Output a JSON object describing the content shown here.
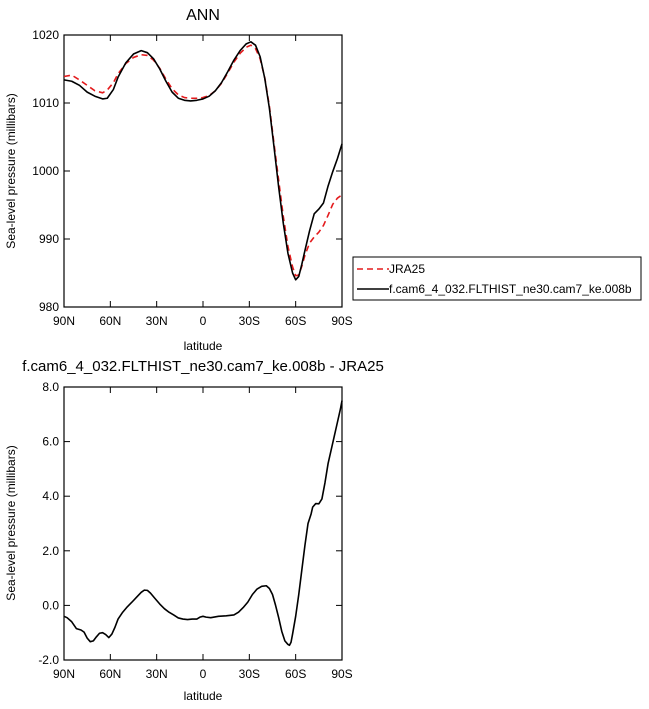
{
  "chart_data": [
    {
      "type": "line",
      "title": "ANN",
      "xlabel": "latitude",
      "ylabel": "Sea-level pressure (millibars)",
      "xlim": [
        90,
        -90
      ],
      "ylim": [
        980,
        1020
      ],
      "x_ticks": [
        {
          "value": 90,
          "label": "90N"
        },
        {
          "value": 60,
          "label": "60N"
        },
        {
          "value": 30,
          "label": "30N"
        },
        {
          "value": 0,
          "label": "0"
        },
        {
          "value": -30,
          "label": "30S"
        },
        {
          "value": -60,
          "label": "60S"
        },
        {
          "value": -90,
          "label": "90S"
        }
      ],
      "y_ticks": [
        {
          "value": 1020,
          "label": "1020"
        },
        {
          "value": 1010,
          "label": "1010"
        },
        {
          "value": 1000,
          "label": "1000"
        },
        {
          "value": 990,
          "label": "990"
        },
        {
          "value": 980,
          "label": "980"
        }
      ],
      "legend_position": "right",
      "series": [
        {
          "name": "JRA25",
          "color": "#e31a1c",
          "dash": "dashed",
          "points": [
            [
              90,
              1013.9
            ],
            [
              85,
              1014.1
            ],
            [
              80,
              1013.4
            ],
            [
              75,
              1012.6
            ],
            [
              70,
              1011.8
            ],
            [
              65,
              1011.5
            ],
            [
              62,
              1011.9
            ],
            [
              58,
              1013.0
            ],
            [
              55,
              1014.3
            ],
            [
              50,
              1015.8
            ],
            [
              45,
              1016.7
            ],
            [
              40,
              1017.1
            ],
            [
              36,
              1017.0
            ],
            [
              32,
              1016.3
            ],
            [
              28,
              1015.1
            ],
            [
              24,
              1013.5
            ],
            [
              20,
              1012.1
            ],
            [
              16,
              1011.2
            ],
            [
              12,
              1010.8
            ],
            [
              8,
              1010.7
            ],
            [
              4,
              1010.7
            ],
            [
              0,
              1010.8
            ],
            [
              -4,
              1011.1
            ],
            [
              -8,
              1011.8
            ],
            [
              -12,
              1012.9
            ],
            [
              -16,
              1014.4
            ],
            [
              -20,
              1016.0
            ],
            [
              -24,
              1017.3
            ],
            [
              -28,
              1018.2
            ],
            [
              -31,
              1018.5
            ],
            [
              -34,
              1018.0
            ],
            [
              -37,
              1016.5
            ],
            [
              -40,
              1013.7
            ],
            [
              -43,
              1009.5
            ],
            [
              -46,
              1004.0
            ],
            [
              -49,
              998.6
            ],
            [
              -52,
              993.3
            ],
            [
              -55,
              988.9
            ],
            [
              -58,
              985.9
            ],
            [
              -60,
              984.6
            ],
            [
              -62,
              984.7
            ],
            [
              -64,
              986.0
            ],
            [
              -66,
              987.6
            ],
            [
              -69,
              989.4
            ],
            [
              -72,
              990.3
            ],
            [
              -75,
              991.0
            ],
            [
              -78,
              992.0
            ],
            [
              -81,
              993.5
            ],
            [
              -84,
              995.1
            ],
            [
              -87,
              996.0
            ],
            [
              -90,
              996.5
            ]
          ]
        },
        {
          "name": "f.cam6_4_032.FLTHIST_ne30.cam7_ke.008b",
          "color": "#000000",
          "dash": "solid",
          "points": [
            [
              90,
              1013.4
            ],
            [
              85,
              1013.2
            ],
            [
              80,
              1012.6
            ],
            [
              75,
              1011.6
            ],
            [
              70,
              1011.0
            ],
            [
              65,
              1010.6
            ],
            [
              62,
              1010.7
            ],
            [
              58,
              1012.0
            ],
            [
              55,
              1013.8
            ],
            [
              50,
              1015.9
            ],
            [
              45,
              1017.2
            ],
            [
              40,
              1017.7
            ],
            [
              36,
              1017.4
            ],
            [
              32,
              1016.5
            ],
            [
              28,
              1015.0
            ],
            [
              24,
              1013.2
            ],
            [
              20,
              1011.6
            ],
            [
              16,
              1010.7
            ],
            [
              12,
              1010.4
            ],
            [
              8,
              1010.3
            ],
            [
              4,
              1010.4
            ],
            [
              0,
              1010.6
            ],
            [
              -4,
              1011.0
            ],
            [
              -8,
              1011.8
            ],
            [
              -12,
              1013.0
            ],
            [
              -16,
              1014.6
            ],
            [
              -20,
              1016.3
            ],
            [
              -24,
              1017.7
            ],
            [
              -28,
              1018.7
            ],
            [
              -31,
              1019.0
            ],
            [
              -34,
              1018.5
            ],
            [
              -37,
              1016.8
            ],
            [
              -40,
              1013.6
            ],
            [
              -43,
              1009.2
            ],
            [
              -46,
              1003.5
            ],
            [
              -49,
              997.6
            ],
            [
              -52,
              992.3
            ],
            [
              -55,
              987.9
            ],
            [
              -58,
              985.0
            ],
            [
              -60,
              984.0
            ],
            [
              -62,
              984.5
            ],
            [
              -64,
              986.3
            ],
            [
              -66,
              988.3
            ],
            [
              -69,
              991.2
            ],
            [
              -72,
              993.7
            ],
            [
              -75,
              994.4
            ],
            [
              -78,
              995.3
            ],
            [
              -81,
              997.8
            ],
            [
              -84,
              999.9
            ],
            [
              -87,
              1001.8
            ],
            [
              -90,
              1004.0
            ]
          ]
        }
      ]
    },
    {
      "type": "line",
      "title": "f.cam6_4_032.FLTHIST_ne30.cam7_ke.008b - JRA25",
      "xlabel": "latitude",
      "ylabel": "Sea-level pressure (millibars)",
      "xlim": [
        90,
        -90
      ],
      "ylim": [
        -2,
        8
      ],
      "x_ticks": [
        {
          "value": 90,
          "label": "90N"
        },
        {
          "value": 60,
          "label": "60N"
        },
        {
          "value": 30,
          "label": "30N"
        },
        {
          "value": 0,
          "label": "0"
        },
        {
          "value": -30,
          "label": "30S"
        },
        {
          "value": -60,
          "label": "60S"
        },
        {
          "value": -90,
          "label": "90S"
        }
      ],
      "y_ticks": [
        {
          "value": 8,
          "label": "8.0"
        },
        {
          "value": 6,
          "label": "6.0"
        },
        {
          "value": 4,
          "label": "4.0"
        },
        {
          "value": 2,
          "label": "2.0"
        },
        {
          "value": 0,
          "label": "0.0"
        },
        {
          "value": -2,
          "label": "-2.0"
        }
      ],
      "series": [
        {
          "color": "#000000",
          "dash": "solid",
          "points": [
            [
              90,
              -0.4
            ],
            [
              88,
              -0.45
            ],
            [
              85,
              -0.6
            ],
            [
              82,
              -0.85
            ],
            [
              79,
              -0.9
            ],
            [
              77,
              -0.98
            ],
            [
              75,
              -1.2
            ],
            [
              73,
              -1.33
            ],
            [
              71,
              -1.3
            ],
            [
              69,
              -1.15
            ],
            [
              67,
              -1.02
            ],
            [
              65,
              -1.0
            ],
            [
              63,
              -1.07
            ],
            [
              61,
              -1.18
            ],
            [
              59,
              -1.05
            ],
            [
              57,
              -0.8
            ],
            [
              55,
              -0.5
            ],
            [
              52,
              -0.25
            ],
            [
              49,
              -0.05
            ],
            [
              46,
              0.12
            ],
            [
              43,
              0.3
            ],
            [
              40,
              0.48
            ],
            [
              38,
              0.56
            ],
            [
              36,
              0.55
            ],
            [
              34,
              0.45
            ],
            [
              31,
              0.25
            ],
            [
              28,
              0.05
            ],
            [
              25,
              -0.12
            ],
            [
              22,
              -0.25
            ],
            [
              19,
              -0.35
            ],
            [
              16,
              -0.46
            ],
            [
              13,
              -0.5
            ],
            [
              10,
              -0.52
            ],
            [
              7,
              -0.5
            ],
            [
              4,
              -0.5
            ],
            [
              2,
              -0.43
            ],
            [
              0,
              -0.4
            ],
            [
              -2,
              -0.43
            ],
            [
              -5,
              -0.45
            ],
            [
              -10,
              -0.4
            ],
            [
              -15,
              -0.38
            ],
            [
              -20,
              -0.35
            ],
            [
              -23,
              -0.25
            ],
            [
              -26,
              -0.08
            ],
            [
              -29,
              0.12
            ],
            [
              -32,
              0.4
            ],
            [
              -35,
              0.6
            ],
            [
              -38,
              0.7
            ],
            [
              -41,
              0.72
            ],
            [
              -43,
              0.62
            ],
            [
              -45,
              0.4
            ],
            [
              -47,
              0.0
            ],
            [
              -49,
              -0.45
            ],
            [
              -51,
              -0.95
            ],
            [
              -53,
              -1.3
            ],
            [
              -55,
              -1.43
            ],
            [
              -56,
              -1.46
            ],
            [
              -57,
              -1.35
            ],
            [
              -58,
              -1.05
            ],
            [
              -60,
              -0.4
            ],
            [
              -62,
              0.4
            ],
            [
              -64,
              1.3
            ],
            [
              -66,
              2.2
            ],
            [
              -68,
              3.0
            ],
            [
              -70,
              3.35
            ],
            [
              -71,
              3.6
            ],
            [
              -73,
              3.73
            ],
            [
              -75,
              3.72
            ],
            [
              -77,
              3.9
            ],
            [
              -79,
              4.5
            ],
            [
              -81,
              5.2
            ],
            [
              -83,
              5.7
            ],
            [
              -85,
              6.2
            ],
            [
              -87,
              6.7
            ],
            [
              -89,
              7.2
            ],
            [
              -90,
              7.5
            ]
          ]
        }
      ]
    }
  ]
}
